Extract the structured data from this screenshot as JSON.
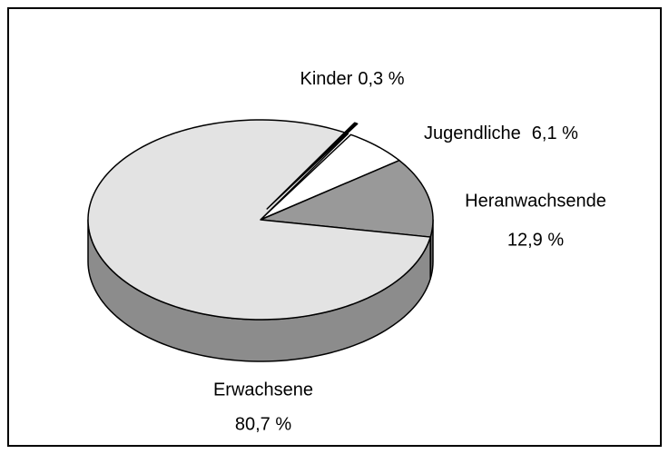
{
  "chart_data": {
    "type": "pie3d",
    "categories": [
      "Kinder",
      "Jugendliche",
      "Heranwachsende",
      "Erwachsene"
    ],
    "values": [
      0.3,
      6.1,
      12.9,
      80.7
    ],
    "value_labels": [
      "0,3 %",
      "6,1 %",
      "12,9 %",
      "80,7 %"
    ],
    "colors": [
      "#000000",
      "#ffffff",
      "#999999",
      "#e3e3e3"
    ],
    "side_colors": [
      "#000000",
      "#bbbbbb",
      "#666666",
      "#8c8c8c"
    ],
    "exploded": [
      "Kinder"
    ]
  }
}
